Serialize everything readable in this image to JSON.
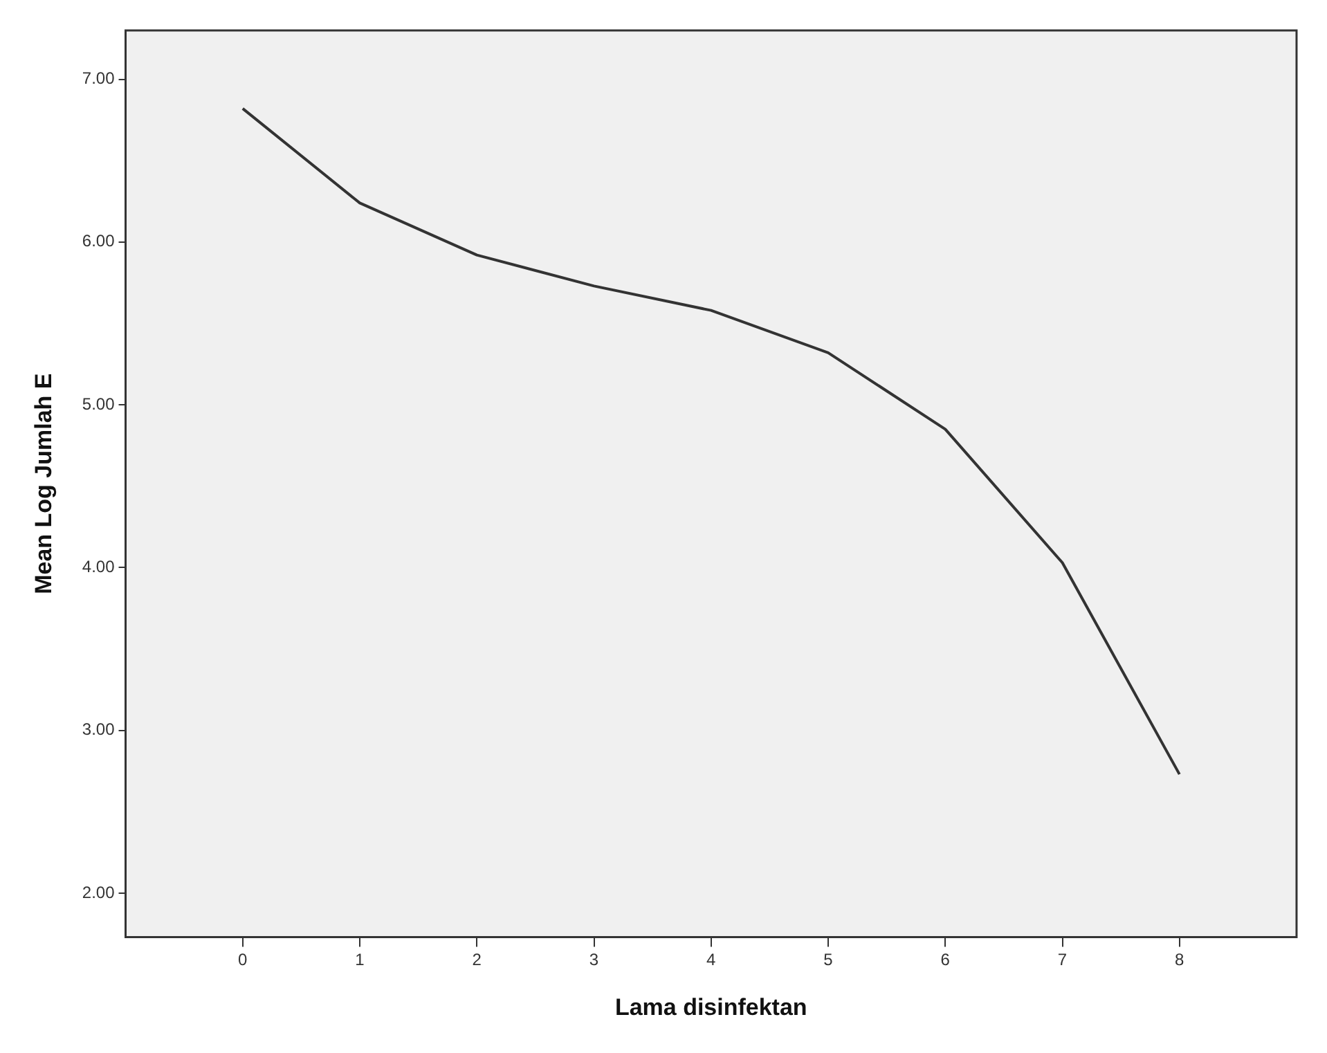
{
  "chart_data": {
    "type": "line",
    "xlabel": "Lama disinfektan",
    "ylabel": "Mean Log Jumlah E",
    "x": [
      0,
      1,
      2,
      3,
      4,
      5,
      6,
      7,
      8
    ],
    "series": [
      {
        "color": "#333333",
        "values": [
          6.82,
          6.24,
          5.92,
          5.73,
          5.58,
          5.32,
          4.85,
          4.03,
          2.73
        ]
      }
    ],
    "xlim": [
      -1,
      9
    ],
    "xticks": [
      0,
      1,
      2,
      3,
      4,
      5,
      6,
      7,
      8
    ],
    "ylim": [
      1.73,
      7.3
    ],
    "yticks": [
      {
        "value": 2,
        "label": "2.00"
      },
      {
        "value": 3,
        "label": "3.00"
      },
      {
        "value": 4,
        "label": "4.00"
      },
      {
        "value": 5,
        "label": "5.00"
      },
      {
        "value": 6,
        "label": "6.00"
      },
      {
        "value": 7,
        "label": "7.00"
      }
    ],
    "grid": false,
    "legend": false,
    "marker": "none",
    "line_style": "solid"
  }
}
